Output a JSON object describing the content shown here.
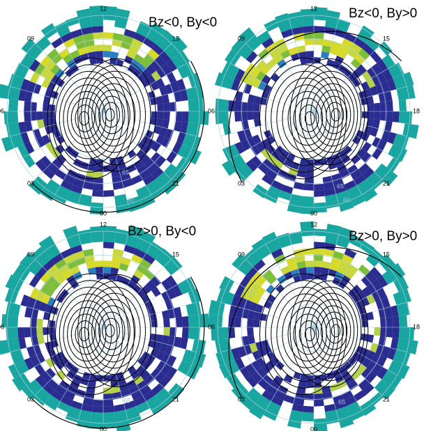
{
  "panels": [
    {
      "title": "Bz<0, By<0",
      "mlt_labels": [
        "12",
        "09",
        "06",
        "03",
        "00",
        "21",
        "15"
      ],
      "lat_labels": [
        "65",
        "60"
      ]
    },
    {
      "title": "Bz<0, By>0",
      "mlt_labels": [
        "12",
        "09",
        "06",
        "03",
        "00",
        "21",
        "18",
        "15"
      ],
      "lat_labels": [
        "65",
        "60"
      ]
    },
    {
      "title": "Bz>0, By<0",
      "mlt_labels": [
        "12",
        "09",
        "06",
        "03",
        "00",
        "21",
        "15"
      ],
      "lat_labels": [
        "65"
      ]
    },
    {
      "title": "Bz>0, By>0",
      "mlt_labels": [
        "12",
        "09",
        "06",
        "03",
        "00",
        "21",
        "18",
        "15"
      ],
      "lat_labels": [
        "65"
      ]
    }
  ]
}
